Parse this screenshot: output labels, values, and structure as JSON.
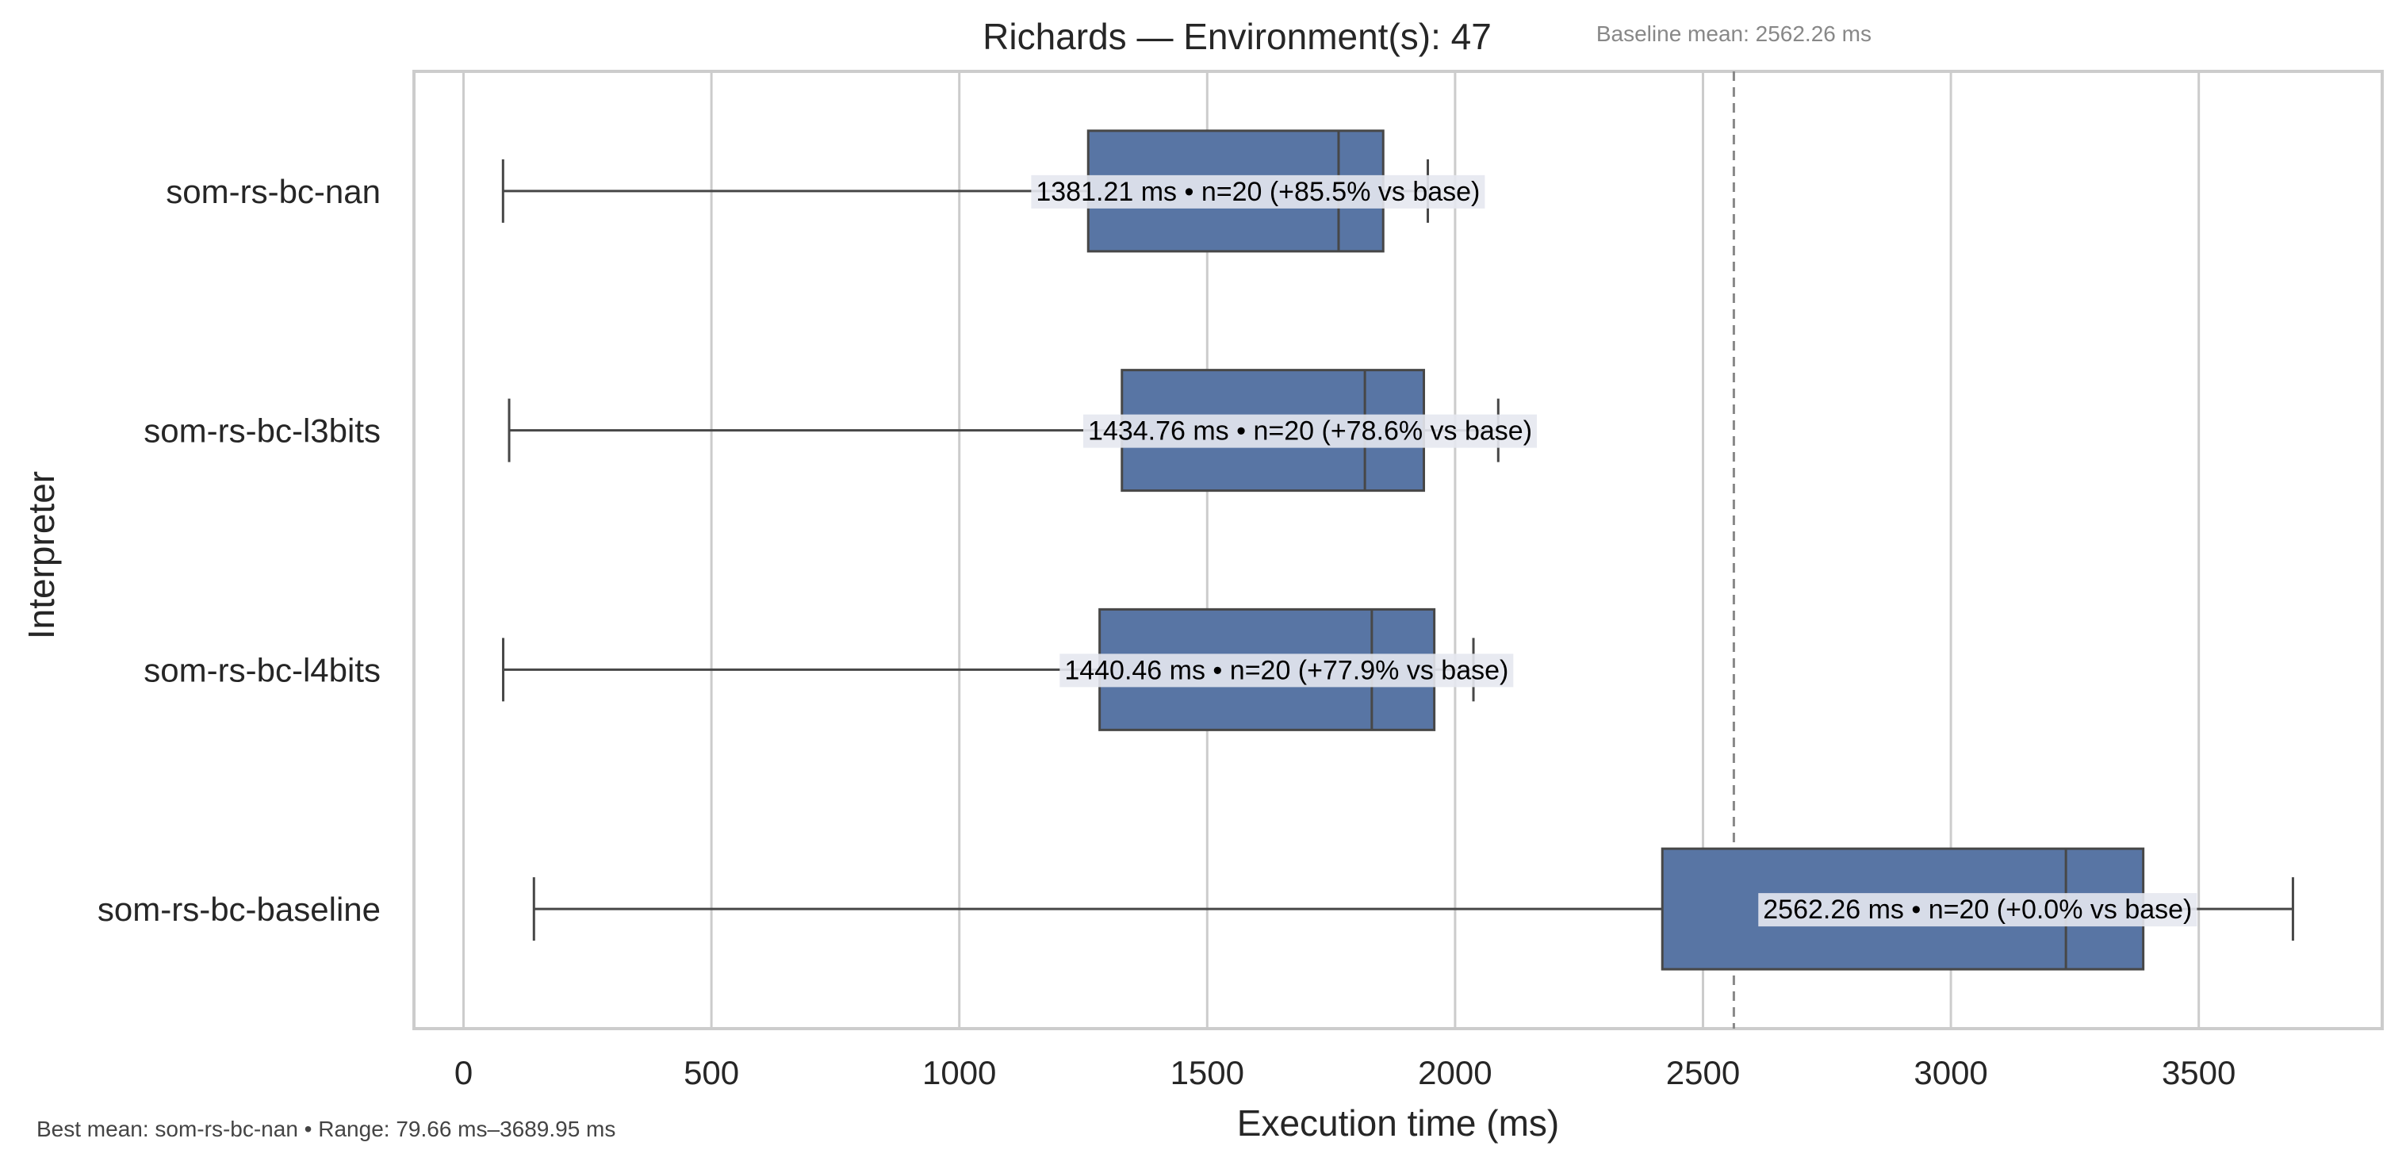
{
  "chart_data": {
    "type": "box",
    "orientation": "horizontal",
    "title": "Richards — Environment(s): 47",
    "xlabel": "Execution time (ms)",
    "ylabel": "Interpreter",
    "xlim": [
      -100,
      3870
    ],
    "xticks": [
      0,
      500,
      1000,
      1500,
      2000,
      2500,
      3000,
      3500
    ],
    "grid": "vertical",
    "categories": [
      "som-rs-bc-nan",
      "som-rs-bc-l3bits",
      "som-rs-bc-l4bits",
      "som-rs-bc-baseline"
    ],
    "boxes": [
      {
        "name": "som-rs-bc-nan",
        "whisker_low": 79.66,
        "q1": 1260,
        "median": 1765,
        "q3": 1855,
        "whisker_high": 1945,
        "label": "1381.21 ms • n=20 (+85.5% vs base)"
      },
      {
        "name": "som-rs-bc-l3bits",
        "whisker_low": 92,
        "q1": 1328,
        "median": 1818,
        "q3": 1937,
        "whisker_high": 2087,
        "label": "1434.76 ms • n=20 (+78.6% vs base)"
      },
      {
        "name": "som-rs-bc-l4bits",
        "whisker_low": 80,
        "q1": 1283,
        "median": 1832,
        "q3": 1958,
        "whisker_high": 2037,
        "label": "1440.46 ms • n=20 (+77.9% vs base)"
      },
      {
        "name": "som-rs-bc-baseline",
        "whisker_low": 142,
        "q1": 2418,
        "median": 3232,
        "q3": 3388,
        "whisker_high": 3689.95,
        "label": "2562.26 ms • n=20 (+0.0% vs base)"
      }
    ],
    "reference_line": {
      "x": 2562.26,
      "label": "Baseline mean: 2562.26 ms",
      "style": "dashed"
    },
    "colors": {
      "box_fill": "#5875a4",
      "box_edge": "#474747",
      "grid": "#cccccc",
      "frame": "#cccccc",
      "ref_line": "#888888",
      "label_bg": "#e6e8ef"
    }
  },
  "footer": {
    "text": "Best mean: som-rs-bc-nan • Range: 79.66 ms–3689.95 ms"
  }
}
